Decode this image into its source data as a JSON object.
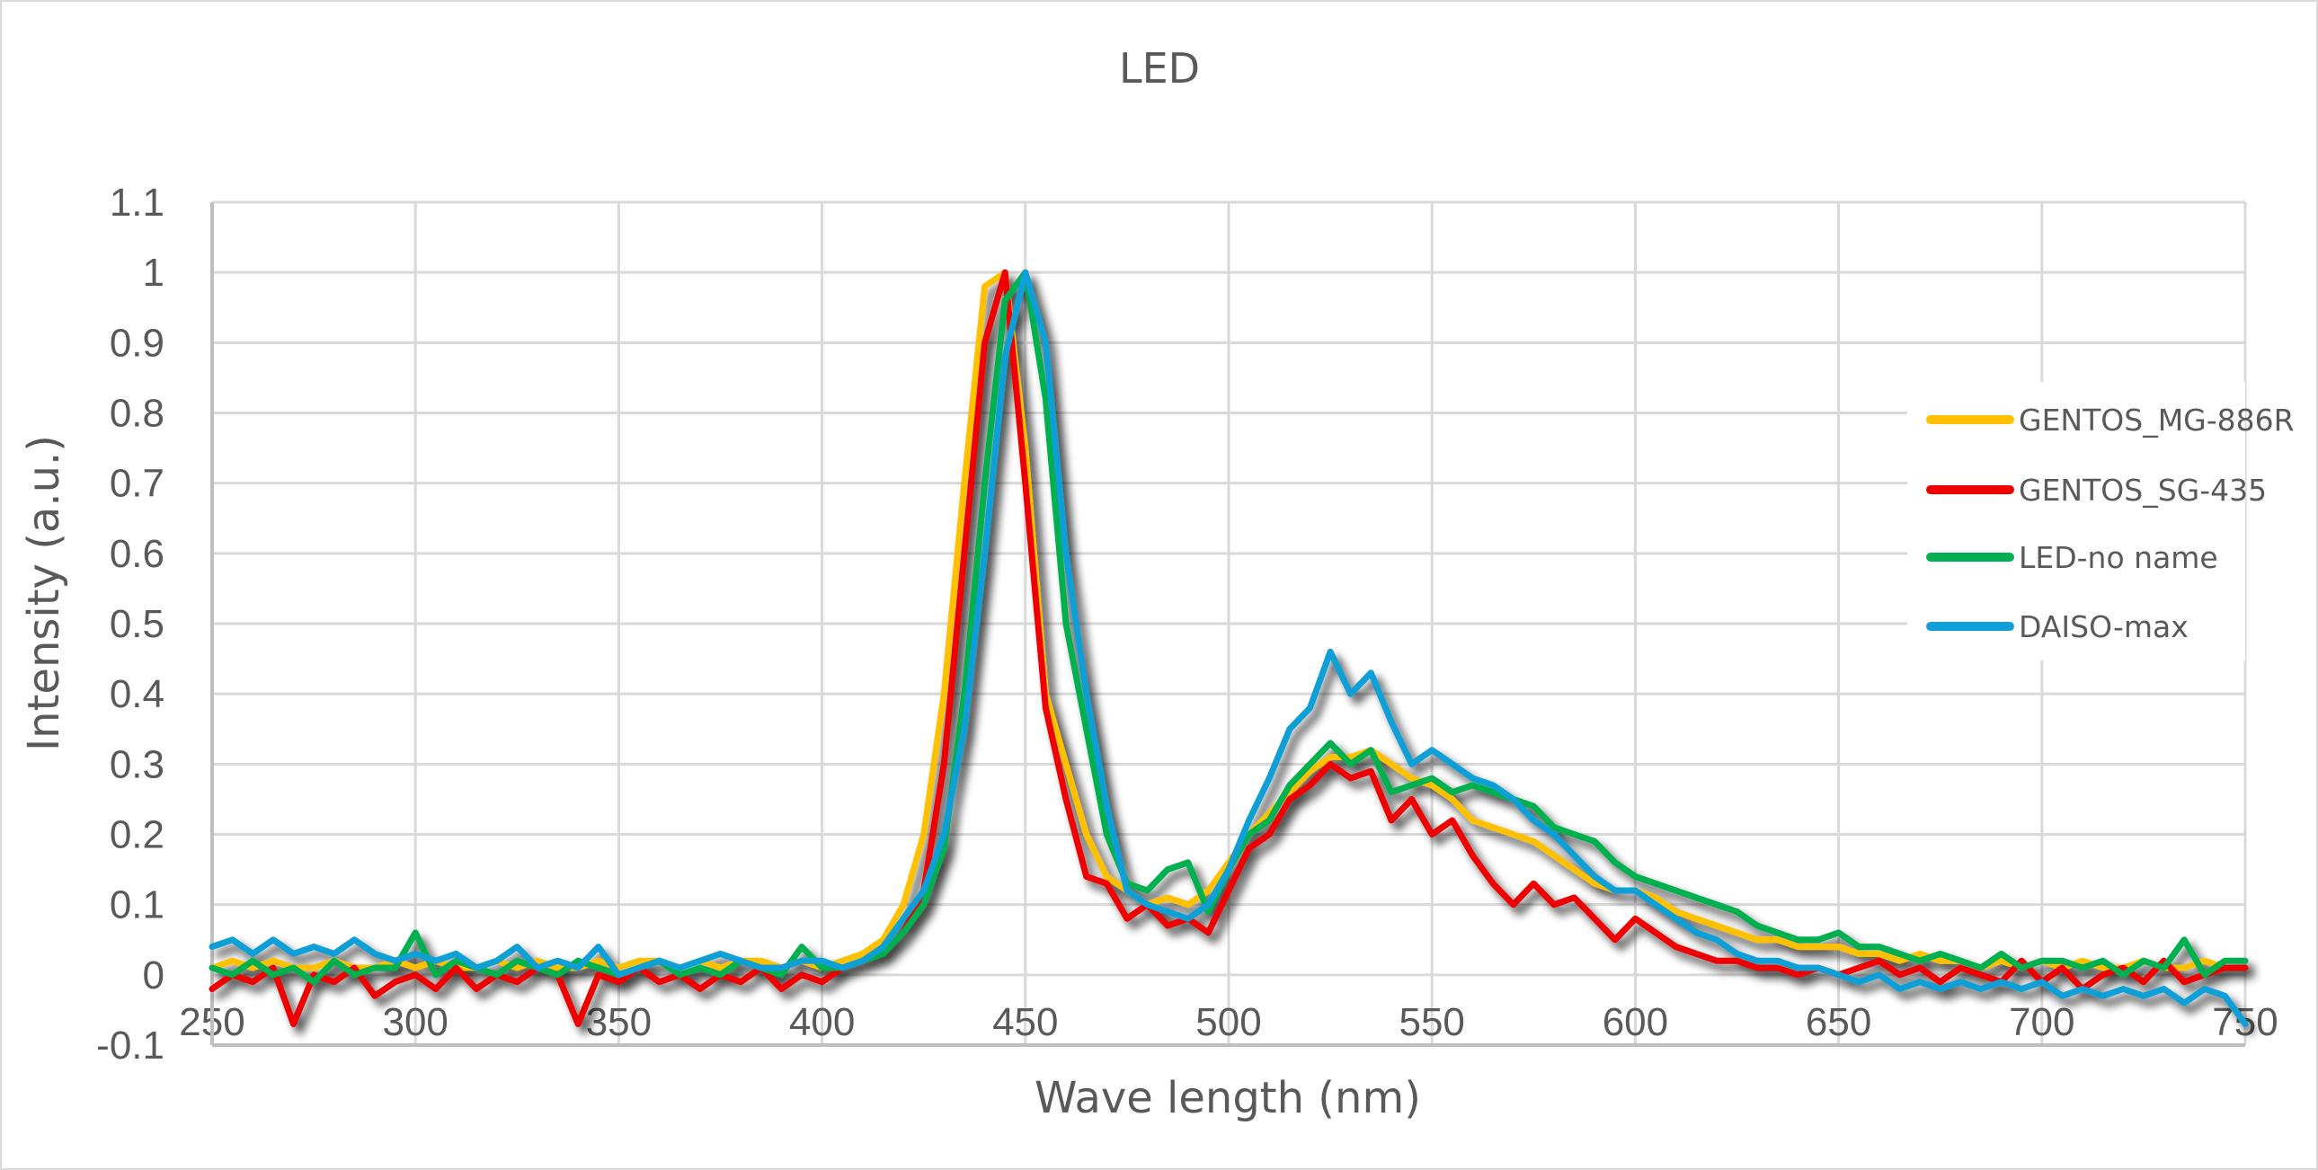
{
  "chart_data": {
    "type": "line",
    "title": "LED",
    "xlabel": "Wave length (nm)",
    "ylabel": "Intensity (a.u.)",
    "xlim": [
      250,
      750
    ],
    "ylim": [
      -0.1,
      1.1
    ],
    "grid": true,
    "legend_position": "right",
    "x_ticks": [
      "250",
      "300",
      "350",
      "400",
      "450",
      "500",
      "550",
      "600",
      "650",
      "700",
      "750"
    ],
    "y_ticks": [
      "1.1",
      "1",
      "0.9",
      "0.8",
      "0.7",
      "0.6",
      "0.5",
      "0.4",
      "0.3",
      "0.2",
      "0.1",
      "0",
      "-0.1"
    ],
    "x": [
      250,
      255,
      260,
      265,
      270,
      275,
      280,
      285,
      290,
      295,
      300,
      305,
      310,
      315,
      320,
      325,
      330,
      335,
      340,
      345,
      350,
      355,
      360,
      365,
      370,
      375,
      380,
      385,
      390,
      395,
      400,
      405,
      410,
      415,
      420,
      425,
      430,
      435,
      440,
      445,
      450,
      455,
      460,
      465,
      470,
      475,
      480,
      485,
      490,
      495,
      500,
      505,
      510,
      515,
      520,
      525,
      530,
      535,
      540,
      545,
      550,
      555,
      560,
      565,
      570,
      575,
      580,
      585,
      590,
      595,
      600,
      605,
      610,
      615,
      620,
      625,
      630,
      635,
      640,
      645,
      650,
      655,
      660,
      665,
      670,
      675,
      680,
      685,
      690,
      695,
      700,
      705,
      710,
      715,
      720,
      725,
      730,
      735,
      740,
      745,
      750
    ],
    "series": [
      {
        "name": "GENTOS_MG-886R",
        "color": "#FFC000",
        "values": [
          0.01,
          0.02,
          0.01,
          0.02,
          0.01,
          0.01,
          0.02,
          0.01,
          0.01,
          0.02,
          0.01,
          0.02,
          0.01,
          0.01,
          0.02,
          0.01,
          0.02,
          0.01,
          0.01,
          0.02,
          0.01,
          0.02,
          0.02,
          0.01,
          0.02,
          0.01,
          0.02,
          0.02,
          0.01,
          0.02,
          0.01,
          0.02,
          0.03,
          0.05,
          0.1,
          0.2,
          0.4,
          0.7,
          0.98,
          1.0,
          0.75,
          0.4,
          0.3,
          0.2,
          0.14,
          0.12,
          0.1,
          0.11,
          0.1,
          0.12,
          0.16,
          0.2,
          0.23,
          0.26,
          0.29,
          0.31,
          0.31,
          0.32,
          0.3,
          0.28,
          0.27,
          0.25,
          0.22,
          0.21,
          0.2,
          0.19,
          0.17,
          0.15,
          0.13,
          0.12,
          0.12,
          0.11,
          0.09,
          0.08,
          0.07,
          0.06,
          0.05,
          0.05,
          0.04,
          0.04,
          0.04,
          0.03,
          0.03,
          0.02,
          0.03,
          0.02,
          0.02,
          0.01,
          0.02,
          0.01,
          0.02,
          0.01,
          0.02,
          0.01,
          0.01,
          0.02,
          0.01,
          0.01,
          0.02,
          0.01,
          0.01
        ]
      },
      {
        "name": "GENTOS_SG-435",
        "color": "#EE0000",
        "values": [
          -0.02,
          0.0,
          -0.01,
          0.01,
          -0.07,
          0.0,
          -0.01,
          0.01,
          -0.03,
          -0.01,
          0.0,
          -0.02,
          0.01,
          -0.02,
          0.0,
          -0.01,
          0.01,
          0.0,
          -0.07,
          0.0,
          -0.01,
          0.01,
          -0.01,
          0.0,
          -0.02,
          0.0,
          -0.01,
          0.01,
          -0.02,
          0.0,
          -0.01,
          0.01,
          0.02,
          0.03,
          0.06,
          0.12,
          0.3,
          0.6,
          0.9,
          1.0,
          0.7,
          0.38,
          0.25,
          0.14,
          0.13,
          0.08,
          0.1,
          0.07,
          0.08,
          0.06,
          0.12,
          0.18,
          0.2,
          0.25,
          0.27,
          0.3,
          0.28,
          0.29,
          0.22,
          0.25,
          0.2,
          0.22,
          0.17,
          0.13,
          0.1,
          0.13,
          0.1,
          0.11,
          0.08,
          0.05,
          0.08,
          0.06,
          0.04,
          0.03,
          0.02,
          0.02,
          0.01,
          0.01,
          0.0,
          0.01,
          0.0,
          0.01,
          0.02,
          0.0,
          0.01,
          -0.01,
          0.01,
          0.0,
          -0.01,
          0.02,
          -0.01,
          0.01,
          -0.02,
          0.0,
          0.01,
          -0.01,
          0.02,
          -0.01,
          0.0,
          0.01,
          0.01
        ]
      },
      {
        "name": "LED-no name",
        "color": "#00B050",
        "values": [
          0.01,
          0.0,
          0.02,
          0.0,
          0.01,
          -0.01,
          0.02,
          0.0,
          0.01,
          0.01,
          0.06,
          0.0,
          0.02,
          0.01,
          0.0,
          0.02,
          0.01,
          0.0,
          0.02,
          0.01,
          0.0,
          0.01,
          0.02,
          0.0,
          0.01,
          0.0,
          0.02,
          0.01,
          0.0,
          0.04,
          0.01,
          0.01,
          0.02,
          0.03,
          0.06,
          0.1,
          0.18,
          0.4,
          0.7,
          0.96,
          1.0,
          0.82,
          0.5,
          0.35,
          0.2,
          0.13,
          0.12,
          0.15,
          0.16,
          0.09,
          0.15,
          0.2,
          0.22,
          0.27,
          0.3,
          0.33,
          0.3,
          0.32,
          0.26,
          0.27,
          0.28,
          0.26,
          0.27,
          0.26,
          0.25,
          0.24,
          0.21,
          0.2,
          0.19,
          0.16,
          0.14,
          0.13,
          0.12,
          0.11,
          0.1,
          0.09,
          0.07,
          0.06,
          0.05,
          0.05,
          0.06,
          0.04,
          0.04,
          0.03,
          0.02,
          0.03,
          0.02,
          0.01,
          0.03,
          0.01,
          0.02,
          0.02,
          0.01,
          0.02,
          0.0,
          0.02,
          0.01,
          0.05,
          0.0,
          0.02,
          0.02
        ]
      },
      {
        "name": "DAISO-max",
        "color": "#109FD6",
        "values": [
          0.04,
          0.05,
          0.03,
          0.05,
          0.03,
          0.04,
          0.03,
          0.05,
          0.03,
          0.02,
          0.03,
          0.02,
          0.03,
          0.01,
          0.02,
          0.04,
          0.01,
          0.02,
          0.01,
          0.04,
          0.0,
          0.01,
          0.02,
          0.01,
          0.02,
          0.03,
          0.02,
          0.01,
          0.01,
          0.02,
          0.02,
          0.01,
          0.02,
          0.04,
          0.08,
          0.12,
          0.2,
          0.35,
          0.6,
          0.88,
          1.0,
          0.9,
          0.6,
          0.4,
          0.24,
          0.12,
          0.1,
          0.09,
          0.08,
          0.1,
          0.15,
          0.22,
          0.28,
          0.35,
          0.38,
          0.46,
          0.4,
          0.43,
          0.36,
          0.3,
          0.32,
          0.3,
          0.28,
          0.27,
          0.25,
          0.22,
          0.2,
          0.17,
          0.14,
          0.12,
          0.12,
          0.1,
          0.08,
          0.06,
          0.05,
          0.03,
          0.02,
          0.02,
          0.01,
          0.01,
          0.0,
          -0.01,
          0.0,
          -0.02,
          -0.01,
          -0.02,
          -0.01,
          -0.02,
          -0.01,
          -0.02,
          -0.01,
          -0.03,
          -0.02,
          -0.03,
          -0.02,
          -0.03,
          -0.02,
          -0.04,
          -0.02,
          -0.03,
          -0.07
        ]
      }
    ]
  }
}
